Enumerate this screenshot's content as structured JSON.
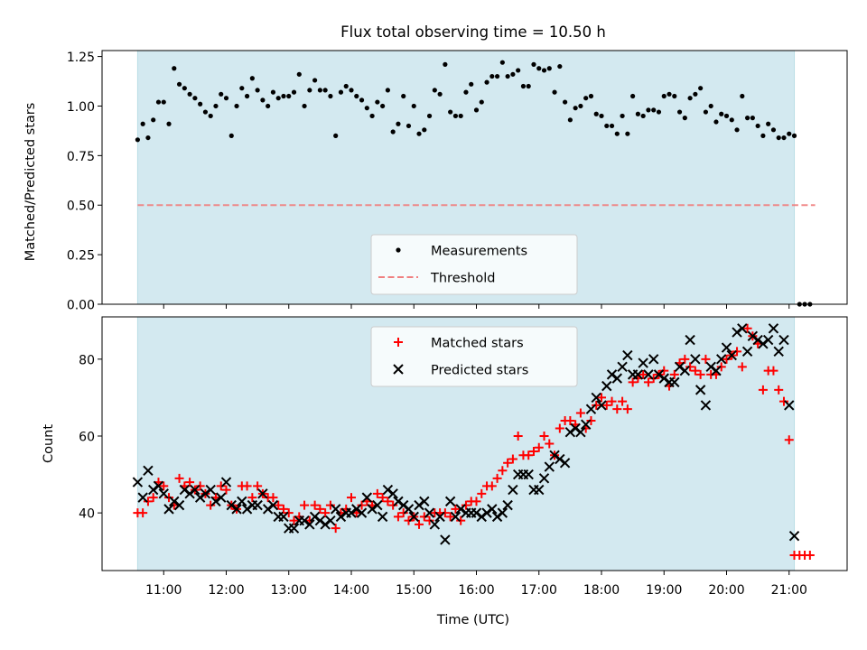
{
  "title": "Flux total observing time = 10.50 h",
  "colors": {
    "shade": "#d3e9f0",
    "shade_edge": "#b9dde6",
    "threshold": "#f08080",
    "matched": "#ff0000",
    "predicted": "#000000",
    "measure": "#000000"
  },
  "chart_data": [
    {
      "type": "scatter",
      "ylabel": "Matched/Predicted stars",
      "xlabel": "",
      "ylim": [
        0,
        1.28
      ],
      "yticks": [
        0.0,
        0.25,
        0.5,
        0.75,
        1.0,
        1.25
      ],
      "ytick_labels": [
        "0.00",
        "0.25",
        "0.50",
        "0.75",
        "1.00",
        "1.25"
      ],
      "shaded_span": [
        "10:35",
        "21:05"
      ],
      "legend": {
        "position": "bottom-center",
        "entries": [
          {
            "label": "Measurements",
            "marker": "dot"
          },
          {
            "label": "Threshold",
            "marker": "dashed-line"
          }
        ]
      },
      "threshold": {
        "y": 0.5,
        "x_start": "10:35",
        "x_end": "21:25"
      },
      "series": [
        {
          "name": "Measurements",
          "x": [
            "10:35",
            "10:40",
            "10:45",
            "10:50",
            "10:55",
            "11:00",
            "11:05",
            "11:10",
            "11:15",
            "11:20",
            "11:25",
            "11:30",
            "11:35",
            "11:40",
            "11:45",
            "11:50",
            "11:55",
            "12:00",
            "12:05",
            "12:10",
            "12:15",
            "12:20",
            "12:25",
            "12:30",
            "12:35",
            "12:40",
            "12:45",
            "12:50",
            "12:55",
            "13:00",
            "13:05",
            "13:10",
            "13:15",
            "13:20",
            "13:25",
            "13:30",
            "13:35",
            "13:40",
            "13:45",
            "13:50",
            "13:55",
            "14:00",
            "14:05",
            "14:10",
            "14:15",
            "14:20",
            "14:25",
            "14:30",
            "14:35",
            "14:40",
            "14:45",
            "14:50",
            "14:55",
            "15:00",
            "15:05",
            "15:10",
            "15:15",
            "15:20",
            "15:25",
            "15:30",
            "15:35",
            "15:40",
            "15:45",
            "15:50",
            "15:55",
            "16:00",
            "16:05",
            "16:10",
            "16:15",
            "16:20",
            "16:25",
            "16:30",
            "16:35",
            "16:40",
            "16:45",
            "16:50",
            "16:55",
            "17:00",
            "17:05",
            "17:10",
            "17:15",
            "17:20",
            "17:25",
            "17:30",
            "17:35",
            "17:40",
            "17:45",
            "17:50",
            "17:55",
            "18:00",
            "18:05",
            "18:10",
            "18:15",
            "18:20",
            "18:25",
            "18:30",
            "18:35",
            "18:40",
            "18:45",
            "18:50",
            "18:55",
            "19:00",
            "19:05",
            "19:10",
            "19:15",
            "19:20",
            "19:25",
            "19:30",
            "19:35",
            "19:40",
            "19:45",
            "19:50",
            "19:55",
            "20:00",
            "20:05",
            "20:10",
            "20:15",
            "20:20",
            "20:25",
            "20:30",
            "20:35",
            "20:40",
            "20:45",
            "20:50",
            "20:55",
            "21:00",
            "21:05",
            "21:10",
            "21:15",
            "21:20"
          ],
          "y": [
            0.83,
            0.91,
            0.84,
            0.93,
            1.02,
            1.02,
            0.91,
            1.19,
            1.11,
            1.09,
            1.06,
            1.04,
            1.01,
            0.97,
            0.95,
            1.0,
            1.06,
            1.04,
            0.85,
            1.0,
            1.09,
            1.05,
            1.14,
            1.08,
            1.03,
            1.0,
            1.07,
            1.04,
            1.05,
            1.05,
            1.07,
            1.16,
            1.0,
            1.08,
            1.13,
            1.08,
            1.08,
            1.05,
            0.85,
            1.07,
            1.1,
            1.08,
            1.05,
            1.03,
            0.99,
            0.95,
            1.02,
            1.0,
            1.08,
            0.87,
            0.91,
            1.05,
            0.9,
            1.0,
            0.86,
            0.88,
            0.95,
            1.08,
            1.06,
            1.21,
            0.97,
            0.95,
            0.95,
            1.07,
            1.11,
            0.98,
            1.02,
            1.12,
            1.15,
            1.15,
            1.22,
            1.15,
            1.16,
            1.18,
            1.1,
            1.1,
            1.21,
            1.19,
            1.18,
            1.19,
            1.07,
            1.2,
            1.02,
            0.93,
            0.99,
            1.0,
            1.04,
            1.05,
            0.96,
            0.95,
            0.9,
            0.9,
            0.86,
            0.95,
            0.86,
            1.05,
            0.96,
            0.95,
            0.98,
            0.98,
            0.97,
            1.05,
            1.06,
            1.05,
            0.97,
            0.94,
            1.04,
            1.06,
            1.09,
            0.97,
            1.0,
            0.92,
            0.96,
            0.95,
            0.93,
            0.88,
            1.05,
            0.94,
            0.94,
            0.9,
            0.85,
            0.91,
            0.88,
            0.84,
            0.84,
            0.86,
            0.85,
            0.0,
            0.0,
            0.0
          ]
        }
      ]
    },
    {
      "type": "scatter",
      "ylabel": "Count",
      "xlabel": "Time (UTC)",
      "ylim": [
        25,
        91
      ],
      "yticks": [
        40,
        60,
        80
      ],
      "xticks": [
        "11:00",
        "12:00",
        "13:00",
        "14:00",
        "15:00",
        "16:00",
        "17:00",
        "18:00",
        "19:00",
        "20:00",
        "21:00"
      ],
      "shaded_span": [
        "10:35",
        "21:05"
      ],
      "legend": {
        "position": "top-center",
        "entries": [
          {
            "label": "Matched stars",
            "marker": "plus"
          },
          {
            "label": "Predicted stars",
            "marker": "x"
          }
        ]
      },
      "series": [
        {
          "name": "Matched stars",
          "x": [
            "10:35",
            "10:40",
            "10:45",
            "10:50",
            "10:55",
            "11:00",
            "11:05",
            "11:10",
            "11:15",
            "11:20",
            "11:25",
            "11:30",
            "11:35",
            "11:40",
            "11:45",
            "11:50",
            "11:55",
            "12:00",
            "12:05",
            "12:10",
            "12:15",
            "12:20",
            "12:25",
            "12:30",
            "12:35",
            "12:40",
            "12:45",
            "12:50",
            "12:55",
            "13:00",
            "13:05",
            "13:10",
            "13:15",
            "13:20",
            "13:25",
            "13:30",
            "13:35",
            "13:40",
            "13:45",
            "13:50",
            "13:55",
            "14:00",
            "14:05",
            "14:10",
            "14:15",
            "14:20",
            "14:25",
            "14:30",
            "14:35",
            "14:40",
            "14:45",
            "14:50",
            "14:55",
            "15:00",
            "15:05",
            "15:10",
            "15:15",
            "15:20",
            "15:25",
            "15:30",
            "15:35",
            "15:40",
            "15:45",
            "15:50",
            "15:55",
            "16:00",
            "16:05",
            "16:10",
            "16:15",
            "16:20",
            "16:25",
            "16:30",
            "16:35",
            "16:40",
            "16:45",
            "16:50",
            "16:55",
            "17:00",
            "17:05",
            "17:10",
            "17:15",
            "17:20",
            "17:25",
            "17:30",
            "17:35",
            "17:40",
            "17:45",
            "17:50",
            "17:55",
            "18:00",
            "18:05",
            "18:10",
            "18:15",
            "18:20",
            "18:25",
            "18:30",
            "18:35",
            "18:40",
            "18:45",
            "18:50",
            "18:55",
            "19:00",
            "19:05",
            "19:10",
            "19:15",
            "19:20",
            "19:25",
            "19:30",
            "19:35",
            "19:40",
            "19:45",
            "19:50",
            "19:55",
            "20:00",
            "20:05",
            "20:10",
            "20:15",
            "20:20",
            "20:25",
            "20:30",
            "20:35",
            "20:40",
            "20:45",
            "20:50",
            "20:55",
            "21:00",
            "21:05",
            "21:10",
            "21:15",
            "21:20"
          ],
          "y": [
            40,
            40,
            43,
            44,
            48,
            47,
            44,
            42,
            49,
            47,
            48,
            46,
            47,
            45,
            42,
            44,
            47,
            46,
            42,
            41,
            47,
            47,
            44,
            47,
            45,
            44,
            44,
            42,
            41,
            40,
            38,
            39,
            42,
            38,
            42,
            41,
            40,
            42,
            36,
            40,
            41,
            44,
            40,
            42,
            43,
            42,
            45,
            44,
            43,
            42,
            39,
            40,
            38,
            39,
            37,
            39,
            38,
            40,
            40,
            40,
            39,
            41,
            38,
            42,
            43,
            43,
            45,
            47,
            47,
            49,
            51,
            53,
            54,
            60,
            55,
            55,
            56,
            57,
            60,
            58,
            55,
            62,
            64,
            64,
            63,
            66,
            62,
            64,
            68,
            70,
            68,
            69,
            67,
            69,
            67,
            74,
            75,
            76,
            74,
            75,
            76,
            77,
            73,
            76,
            79,
            80,
            78,
            77,
            76,
            80,
            76,
            76,
            78,
            80,
            81,
            82,
            78,
            88,
            86,
            84,
            72,
            77,
            77,
            72,
            69,
            59,
            29,
            29,
            29,
            29
          ]
        },
        {
          "name": "Predicted stars",
          "x": [
            "10:35",
            "10:40",
            "10:45",
            "10:50",
            "10:55",
            "11:00",
            "11:05",
            "11:10",
            "11:15",
            "11:20",
            "11:25",
            "11:30",
            "11:35",
            "11:40",
            "11:45",
            "11:50",
            "11:55",
            "12:00",
            "12:05",
            "12:10",
            "12:15",
            "12:20",
            "12:25",
            "12:30",
            "12:35",
            "12:40",
            "12:45",
            "12:50",
            "12:55",
            "13:00",
            "13:05",
            "13:10",
            "13:15",
            "13:20",
            "13:25",
            "13:30",
            "13:35",
            "13:40",
            "13:45",
            "13:50",
            "13:55",
            "14:00",
            "14:05",
            "14:10",
            "14:15",
            "14:20",
            "14:25",
            "14:30",
            "14:35",
            "14:40",
            "14:45",
            "14:50",
            "14:55",
            "15:00",
            "15:05",
            "15:10",
            "15:15",
            "15:20",
            "15:25",
            "15:30",
            "15:35",
            "15:40",
            "15:45",
            "15:50",
            "15:55",
            "16:00",
            "16:05",
            "16:10",
            "16:15",
            "16:20",
            "16:25",
            "16:30",
            "16:35",
            "16:40",
            "16:45",
            "16:50",
            "16:55",
            "17:00",
            "17:05",
            "17:10",
            "17:15",
            "17:20",
            "17:25",
            "17:30",
            "17:35",
            "17:40",
            "17:45",
            "17:50",
            "17:55",
            "18:00",
            "18:05",
            "18:10",
            "18:15",
            "18:20",
            "18:25",
            "18:30",
            "18:35",
            "18:40",
            "18:45",
            "18:50",
            "18:55",
            "19:00",
            "19:05",
            "19:10",
            "19:15",
            "19:20",
            "19:25",
            "19:30",
            "19:35",
            "19:40",
            "19:45",
            "19:50",
            "19:55",
            "20:00",
            "20:05",
            "20:10",
            "20:15",
            "20:20",
            "20:25",
            "20:30",
            "20:35",
            "20:40",
            "20:45",
            "20:50",
            "20:55",
            "21:00",
            "21:05"
          ],
          "y": [
            48,
            44,
            51,
            46,
            47,
            45,
            41,
            43,
            42,
            46,
            45,
            46,
            44,
            45,
            46,
            43,
            44,
            48,
            42,
            41,
            43,
            41,
            42,
            42,
            45,
            41,
            42,
            39,
            39,
            36,
            36,
            38,
            38,
            37,
            39,
            38,
            37,
            38,
            41,
            39,
            40,
            40,
            41,
            40,
            44,
            41,
            42,
            39,
            46,
            45,
            43,
            42,
            41,
            39,
            42,
            43,
            40,
            37,
            39,
            33,
            43,
            39,
            41,
            40,
            40,
            40,
            39,
            40,
            41,
            39,
            40,
            42,
            46,
            50,
            50,
            50,
            46,
            46,
            49,
            52,
            55,
            54,
            53,
            61,
            62,
            61,
            63,
            67,
            70,
            68,
            73,
            76,
            75,
            78,
            81,
            76,
            76,
            79,
            76,
            80,
            76,
            75,
            74,
            74,
            78,
            77,
            85,
            80,
            72,
            68,
            78,
            77,
            80,
            83,
            81,
            87,
            88,
            82,
            86,
            85,
            84,
            85,
            88,
            82,
            85,
            68,
            34
          ]
        }
      ]
    }
  ]
}
